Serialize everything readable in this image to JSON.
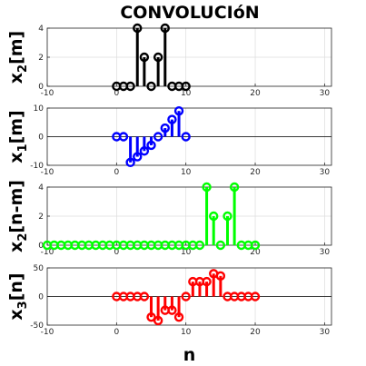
{
  "title": "CONVOLUCIóN",
  "chart_data": [
    {
      "type": "stem",
      "ylabel_main": "x",
      "ylabel_sub": "2",
      "ylabel_tail": "[m]",
      "xlim": [
        -10,
        31
      ],
      "ylim": [
        0,
        4
      ],
      "yticks": [
        0,
        2,
        4
      ],
      "xticks": [
        -10,
        0,
        10,
        20,
        30
      ],
      "grid": true,
      "color": "#000000",
      "x": [
        0,
        1,
        2,
        3,
        4,
        5,
        6,
        7,
        8,
        9,
        10
      ],
      "values": [
        0,
        0,
        0,
        4,
        2,
        0,
        2,
        4,
        0,
        0,
        0
      ]
    },
    {
      "type": "stem",
      "ylabel_main": "x",
      "ylabel_sub": "1",
      "ylabel_tail": "[m]",
      "xlim": [
        -10,
        31
      ],
      "ylim": [
        -10,
        10
      ],
      "yticks": [
        -10,
        0,
        10
      ],
      "xticks": [
        -10,
        0,
        10,
        20,
        30
      ],
      "grid": true,
      "color": "#0000ff",
      "x": [
        0,
        1,
        2,
        3,
        4,
        5,
        6,
        7,
        8,
        9,
        10
      ],
      "values": [
        0,
        0,
        -9,
        -7,
        -5,
        -3,
        0,
        3,
        6,
        9,
        0
      ]
    },
    {
      "type": "stem",
      "ylabel_main": "x",
      "ylabel_sub": "2",
      "ylabel_tail": "[n-m]",
      "xlim": [
        -10,
        31
      ],
      "ylim": [
        0,
        4
      ],
      "yticks": [
        0,
        2,
        4
      ],
      "xticks": [
        -10,
        0,
        10,
        20,
        30
      ],
      "grid": true,
      "color": "#00ff00",
      "xlabel": "n",
      "x": [
        -10,
        -9,
        -8,
        -7,
        -6,
        -5,
        -4,
        -3,
        -2,
        -1,
        0,
        1,
        2,
        3,
        4,
        5,
        6,
        7,
        8,
        9,
        10,
        11,
        12,
        13,
        14,
        15,
        16,
        17,
        18,
        19,
        20
      ],
      "values": [
        0,
        0,
        0,
        0,
        0,
        0,
        0,
        0,
        0,
        0,
        0,
        0,
        0,
        0,
        0,
        0,
        0,
        0,
        0,
        0,
        0,
        0,
        0,
        4,
        2,
        0,
        2,
        4,
        0,
        0,
        0
      ]
    },
    {
      "type": "stem",
      "ylabel_main": "x",
      "ylabel_sub": "3",
      "ylabel_tail": "[n]",
      "xlim": [
        -10,
        31
      ],
      "ylim": [
        -50,
        50
      ],
      "yticks": [
        -50,
        0,
        50
      ],
      "xticks": [
        -10,
        0,
        10,
        20,
        30
      ],
      "grid": true,
      "color": "#ff0000",
      "xlabel": "n",
      "x": [
        0,
        1,
        2,
        3,
        4,
        5,
        6,
        7,
        8,
        9,
        10,
        11,
        12,
        13,
        14,
        15,
        16,
        17,
        18,
        19,
        20
      ],
      "values": [
        0,
        0,
        0,
        0,
        0,
        -36,
        -42,
        -24,
        -24,
        -36,
        0,
        26,
        26,
        26,
        40,
        36,
        0,
        0,
        0,
        0,
        0
      ]
    }
  ]
}
